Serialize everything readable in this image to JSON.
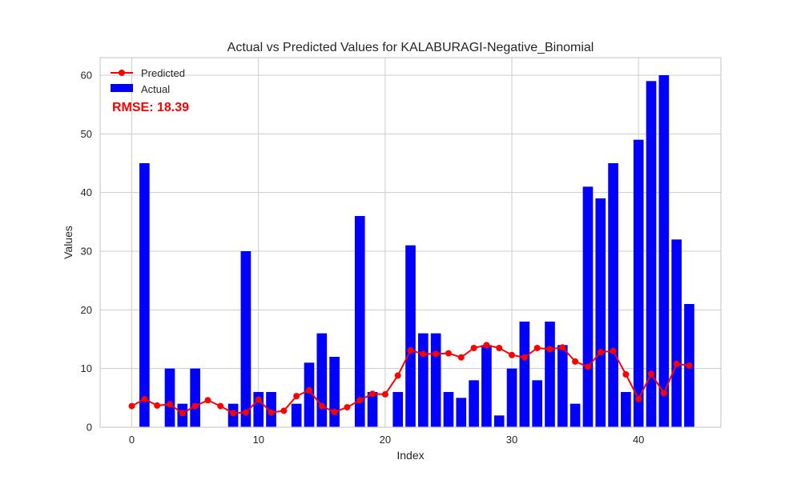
{
  "chart_data": {
    "type": "bar",
    "title": "Actual vs Predicted Values for KALABURAGI-Negative_Binomial",
    "xlabel": "Index",
    "ylabel": "Values",
    "xlim": [
      -2.5,
      46.5
    ],
    "ylim": [
      0,
      63
    ],
    "xticks": [
      0,
      10,
      20,
      30,
      40
    ],
    "yticks": [
      0,
      10,
      20,
      30,
      40,
      50,
      60
    ],
    "grid": true,
    "legend_position": "top-left",
    "annotation": {
      "text": "RMSE: 18.39",
      "color": "#ff0000"
    },
    "x": [
      0,
      1,
      2,
      3,
      4,
      5,
      6,
      7,
      8,
      9,
      10,
      11,
      12,
      13,
      14,
      15,
      16,
      17,
      18,
      19,
      20,
      21,
      22,
      23,
      24,
      25,
      26,
      27,
      28,
      29,
      30,
      31,
      32,
      33,
      34,
      35,
      36,
      37,
      38,
      39,
      40,
      41,
      42,
      43,
      44
    ],
    "series": [
      {
        "name": "Actual",
        "kind": "bar",
        "color": "#0000ff",
        "values": [
          0,
          45,
          0,
          10,
          4,
          10,
          0,
          0,
          4,
          30,
          6,
          6,
          0,
          4,
          11,
          16,
          12,
          0,
          36,
          6,
          0,
          6,
          31,
          16,
          16,
          6,
          5,
          8,
          14,
          2,
          10,
          18,
          8,
          18,
          14,
          4,
          41,
          39,
          45,
          6,
          49,
          59,
          60,
          32,
          21
        ]
      },
      {
        "name": "Predicted",
        "kind": "line",
        "color": "#ff0000",
        "values": [
          3.6,
          4.8,
          3.7,
          3.9,
          2.4,
          3.6,
          4.6,
          3.6,
          2.4,
          2.5,
          4.7,
          2.5,
          2.8,
          5.3,
          6.3,
          3.6,
          2.6,
          3.4,
          4.6,
          5.7,
          5.6,
          8.8,
          13.1,
          12.5,
          12.5,
          12.6,
          11.9,
          13.5,
          14.0,
          13.5,
          12.3,
          11.9,
          13.5,
          13.3,
          13.6,
          11.2,
          10.3,
          12.8,
          13.0,
          9.0,
          4.8,
          9.1,
          5.8,
          10.8,
          10.5
        ]
      }
    ]
  }
}
